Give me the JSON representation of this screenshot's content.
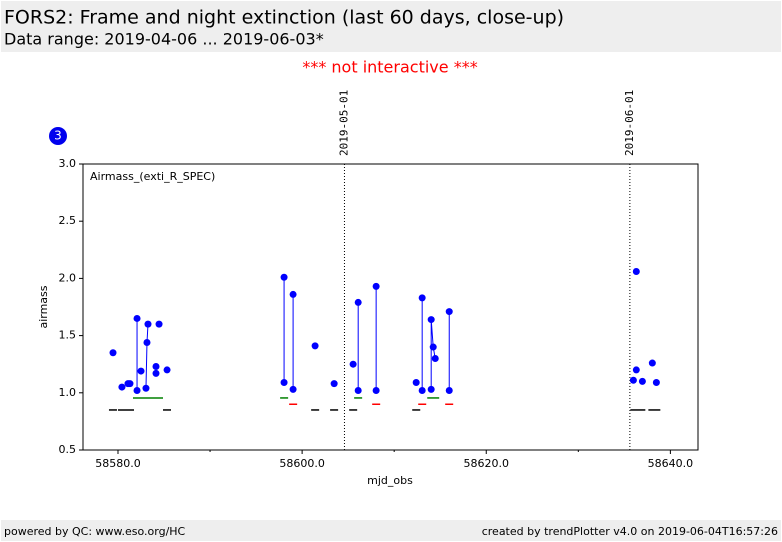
{
  "header": {
    "title": "FORS2: Frame and night extinction (last 60 days, close-up)",
    "subtitle": "Data range: 2019-04-06 ... 2019-06-03*",
    "notice": "*** not interactive ***",
    "badge": "3"
  },
  "footer": {
    "left": "powered by QC: www.eso.org/HC",
    "right": "created by trendPlotter v4.0 on 2019-06-04T16:57:26"
  },
  "chart_data": {
    "type": "scatter",
    "legend_text": "Airmass_(exti_R_SPEC)",
    "xlabel": "mjd_obs",
    "ylabel": "airmass",
    "xlim": [
      58576.2,
      58643.0
    ],
    "ylim": [
      0.5,
      3.0
    ],
    "xticks": [
      {
        "value": 58580,
        "label": "58580.0"
      },
      {
        "value": 58600,
        "label": "58600.0"
      },
      {
        "value": 58620,
        "label": "58620.0"
      },
      {
        "value": 58640,
        "label": "58640.0"
      }
    ],
    "xticks_minor": [
      58590,
      58610,
      58630
    ],
    "yticks": [
      0.5,
      {
        "value": 1.0,
        "label": "1.0"
      },
      1.5,
      {
        "value": 2.0,
        "label": "2.0"
      },
      2.5,
      {
        "value": 3.0,
        "label": "3.0"
      }
    ],
    "markers": [
      {
        "x": 58604.6,
        "label": "2019-05-01"
      },
      {
        "x": 58635.6,
        "label": "2019-06-01"
      }
    ],
    "color": "#0000ff",
    "point_groups": [
      {
        "x": [
          58579.46
        ],
        "y": [
          1.35
        ]
      },
      {
        "x": [
          58580.43
        ],
        "y": [
          1.05
        ]
      },
      {
        "x": [
          58581.09
        ],
        "y": [
          1.08
        ]
      },
      {
        "x": [
          58581.3
        ],
        "y": [
          1.08
        ]
      },
      {
        "x": [
          58582.07,
          58582.07
        ],
        "y": [
          1.65,
          1.02
        ]
      },
      {
        "x": [
          58582.5
        ],
        "y": [
          1.19
        ]
      },
      {
        "x": [
          58583.04,
          58583.15,
          58583.26
        ],
        "y": [
          1.04,
          1.44,
          1.6
        ]
      },
      {
        "x": [
          58584.13
        ],
        "y": [
          1.17
        ]
      },
      {
        "x": [
          58584.13
        ],
        "y": [
          1.23
        ]
      },
      {
        "x": [
          58584.46
        ],
        "y": [
          1.6
        ]
      },
      {
        "x": [
          58585.33
        ],
        "y": [
          1.2
        ]
      },
      {
        "x": [
          58598.04,
          58598.04
        ],
        "y": [
          2.01,
          1.09
        ]
      },
      {
        "x": [
          58599.02,
          58599.02
        ],
        "y": [
          1.86,
          1.03
        ]
      },
      {
        "x": [
          58601.41
        ],
        "y": [
          1.41
        ]
      },
      {
        "x": [
          58603.48
        ],
        "y": [
          1.08
        ]
      },
      {
        "x": [
          58605.54
        ],
        "y": [
          1.25
        ]
      },
      {
        "x": [
          58606.09,
          58606.09
        ],
        "y": [
          1.79,
          1.02
        ]
      },
      {
        "x": [
          58608.04,
          58608.04
        ],
        "y": [
          1.93,
          1.02
        ]
      },
      {
        "x": [
          58612.39
        ],
        "y": [
          1.09
        ]
      },
      {
        "x": [
          58613.04,
          58613.04
        ],
        "y": [
          1.83,
          1.02
        ]
      },
      {
        "x": [
          58614.02,
          58614.02,
          58614.24,
          58614.46
        ],
        "y": [
          1.03,
          1.64,
          1.4,
          1.3
        ]
      },
      {
        "x": [
          58615.98,
          58615.98
        ],
        "y": [
          1.71,
          1.02
        ]
      },
      {
        "x": [
          58636.3
        ],
        "y": [
          2.06
        ]
      },
      {
        "x": [
          58636.3
        ],
        "y": [
          1.2
        ]
      },
      {
        "x": [
          58635.98
        ],
        "y": [
          1.11
        ]
      },
      {
        "x": [
          58636.96
        ],
        "y": [
          1.1
        ]
      },
      {
        "x": [
          58638.04
        ],
        "y": [
          1.26
        ]
      },
      {
        "x": [
          58638.48
        ],
        "y": [
          1.09
        ]
      }
    ],
    "dash_series": [
      {
        "color": "#000000",
        "y": 0.85,
        "x_ranges": [
          [
            58579.02,
            58579.89
          ],
          [
            58580.0,
            58581.74
          ],
          [
            58584.89,
            58585.76
          ],
          [
            58600.98,
            58601.85
          ],
          [
            58603.04,
            58603.91
          ],
          [
            58605.11,
            58605.98
          ],
          [
            58611.96,
            58612.83
          ],
          [
            58635.65,
            58637.28
          ],
          [
            58637.61,
            58638.91
          ]
        ]
      },
      {
        "color": "#008000",
        "y": 0.955,
        "x_ranges": [
          [
            58581.63,
            58584.89
          ],
          [
            58597.61,
            58598.48
          ],
          [
            58605.65,
            58606.52
          ],
          [
            58613.59,
            58614.89
          ]
        ]
      },
      {
        "color": "#ff0000",
        "y": 0.9,
        "x_ranges": [
          [
            58598.59,
            58599.46
          ],
          [
            58607.61,
            58608.48
          ],
          [
            58612.61,
            58613.48
          ],
          [
            58615.54,
            58616.41
          ]
        ]
      }
    ]
  }
}
